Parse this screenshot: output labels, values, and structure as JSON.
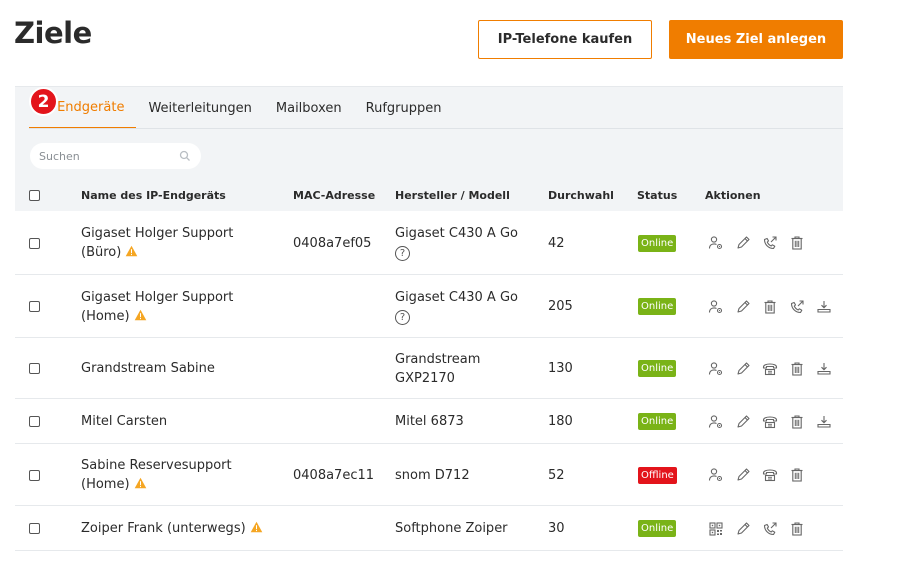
{
  "header": {
    "title": "Ziele",
    "buy_button": "IP-Telefone kaufen",
    "new_button": "Neues Ziel anlegen"
  },
  "tabs": [
    {
      "label": "IP-Endgeräte",
      "active": true
    },
    {
      "label": "Weiterleitungen",
      "active": false
    },
    {
      "label": "Mailboxen",
      "active": false
    },
    {
      "label": "Rufgruppen",
      "active": false
    }
  ],
  "search": {
    "placeholder": "Suchen",
    "value": ""
  },
  "step_badge": "2",
  "columns": {
    "name": "Name des IP-Endgeräts",
    "mac": "MAC-Adresse",
    "model": "Hersteller / Modell",
    "extension": "Durchwahl",
    "status": "Status",
    "actions": "Aktionen"
  },
  "rows": [
    {
      "name1": "Gigaset Holger Support",
      "name2": "(Büro)",
      "warning": true,
      "mac": "0408a7ef05",
      "model1": "Gigaset C430 A Go",
      "model2": "?",
      "ext": "42",
      "status": "Online",
      "actions": [
        "user-settings-icon",
        "edit-icon",
        "call-forward-icon",
        "trash-icon"
      ]
    },
    {
      "name1": "Gigaset Holger Support",
      "name2": "(Home)",
      "warning": true,
      "mac": "",
      "model1": "Gigaset C430 A Go",
      "model2": "?",
      "ext": "205",
      "status": "Online",
      "actions": [
        "user-settings-icon",
        "edit-icon",
        "trash-icon",
        "call-forward-icon",
        "provision-icon"
      ]
    },
    {
      "name1": "Grandstream Sabine",
      "name2": "",
      "warning": false,
      "mac": "",
      "model1": "Grandstream",
      "model2": "GXP2170",
      "ext": "130",
      "status": "Online",
      "actions": [
        "user-settings-icon",
        "edit-icon",
        "desk-phone-icon",
        "trash-icon",
        "provision-icon"
      ]
    },
    {
      "name1": "Mitel Carsten",
      "name2": "",
      "warning": false,
      "mac": "",
      "model1": "Mitel 6873",
      "model2": "",
      "ext": "180",
      "status": "Online",
      "actions": [
        "user-settings-icon",
        "edit-icon",
        "desk-phone-icon",
        "trash-icon",
        "provision-icon"
      ]
    },
    {
      "name1": "Sabine Reservesupport",
      "name2": "(Home)",
      "warning": true,
      "mac": "0408a7ec11",
      "model1": "snom D712",
      "model2": "",
      "ext": "52",
      "status": "Offline",
      "actions": [
        "user-settings-icon",
        "edit-icon",
        "desk-phone-icon",
        "trash-icon"
      ]
    },
    {
      "name1": "Zoiper Frank (unterwegs)",
      "name2": "",
      "warning": true,
      "mac": "",
      "model1": "Softphone Zoiper",
      "model2": "",
      "ext": "30",
      "status": "Online",
      "actions": [
        "qr-code-icon",
        "edit-icon",
        "call-forward-icon",
        "trash-icon"
      ]
    }
  ],
  "colors": {
    "accent": "#f07d00",
    "online": "#7ab317",
    "offline": "#e3141b",
    "warning": "#f5a623"
  }
}
